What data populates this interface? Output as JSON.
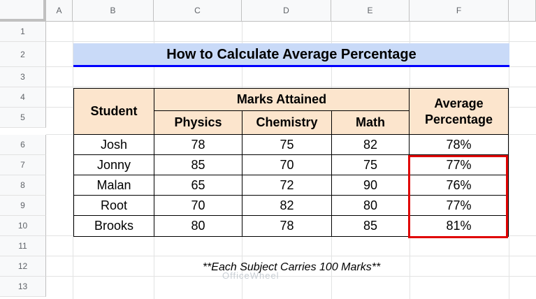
{
  "spreadsheet": {
    "columns": [
      "A",
      "B",
      "C",
      "D",
      "E",
      "F"
    ],
    "rows": [
      "1",
      "2",
      "3",
      "4",
      "5",
      "6",
      "7",
      "8",
      "9",
      "10",
      "11",
      "12",
      "13"
    ]
  },
  "sheet": {
    "title": "How to Calculate Average Percentage",
    "headers": {
      "student": "Student",
      "marks_attained": "Marks Attained",
      "physics": "Physics",
      "chemistry": "Chemistry",
      "math": "Math",
      "average_percentage": "Average Percentage"
    },
    "rows": [
      {
        "student": "Josh",
        "physics": "78",
        "chemistry": "75",
        "math": "82",
        "avg": "78%"
      },
      {
        "student": "Jonny",
        "physics": "85",
        "chemistry": "70",
        "math": "75",
        "avg": "77%"
      },
      {
        "student": "Malan",
        "physics": "65",
        "chemistry": "72",
        "math": "90",
        "avg": "76%"
      },
      {
        "student": "Root",
        "physics": "70",
        "chemistry": "82",
        "math": "80",
        "avg": "77%"
      },
      {
        "student": "Brooks",
        "physics": "80",
        "chemistry": "78",
        "math": "85",
        "avg": "81%"
      }
    ],
    "note": "**Each Subject Carries 100 Marks**"
  },
  "watermark": {
    "text": "OfficeWheel"
  },
  "colors": {
    "title_fill": "#c9daf8",
    "title_underline": "#0000ff",
    "header_fill": "#fce5cd",
    "highlight": "#e00000"
  }
}
